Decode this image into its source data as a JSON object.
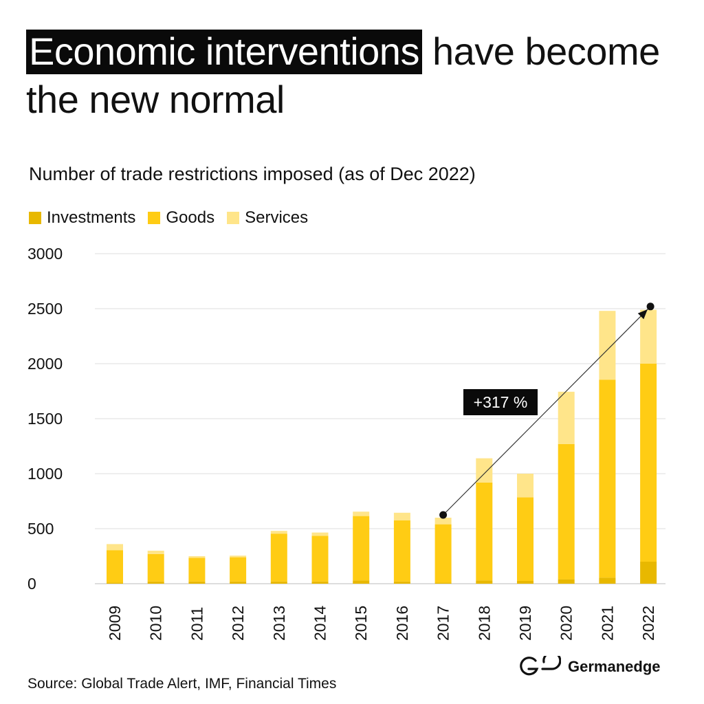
{
  "title": {
    "highlight": "Economic interventions",
    "rest": " have become the new normal"
  },
  "subtitle": "Number of trade restrictions imposed (as of Dec 2022)",
  "legend": [
    {
      "name": "Investments",
      "color": "#E8B800"
    },
    {
      "name": "Goods",
      "color": "#FFCC14"
    },
    {
      "name": "Services",
      "color": "#FFE58A"
    }
  ],
  "annotation": {
    "label": "+317 %",
    "from_year": "2017",
    "from_value": 625,
    "to_year": "2022",
    "to_value": 2520
  },
  "chart_data": {
    "type": "bar",
    "stacked": true,
    "categories": [
      "2009",
      "2010",
      "2011",
      "2012",
      "2013",
      "2014",
      "2015",
      "2016",
      "2017",
      "2018",
      "2019",
      "2020",
      "2021",
      "2022"
    ],
    "series": [
      {
        "name": "Investments",
        "values": [
          10,
          20,
          20,
          20,
          20,
          20,
          30,
          20,
          10,
          30,
          25,
          40,
          55,
          200
        ]
      },
      {
        "name": "Goods",
        "values": [
          295,
          250,
          215,
          220,
          435,
          415,
          585,
          555,
          530,
          890,
          760,
          1230,
          1800,
          1800
        ]
      },
      {
        "name": "Services",
        "values": [
          55,
          30,
          15,
          15,
          25,
          30,
          40,
          70,
          60,
          220,
          215,
          475,
          625,
          490
        ]
      }
    ],
    "ylim": [
      0,
      3000
    ],
    "yticks": [
      0,
      500,
      1000,
      1500,
      2000,
      2500,
      3000
    ],
    "grid": true,
    "legend_position": "top-left"
  },
  "source": "Source: Global Trade Alert, IMF, Financial Times",
  "brand": {
    "logo_text": "GE",
    "name": "Germanedge"
  }
}
